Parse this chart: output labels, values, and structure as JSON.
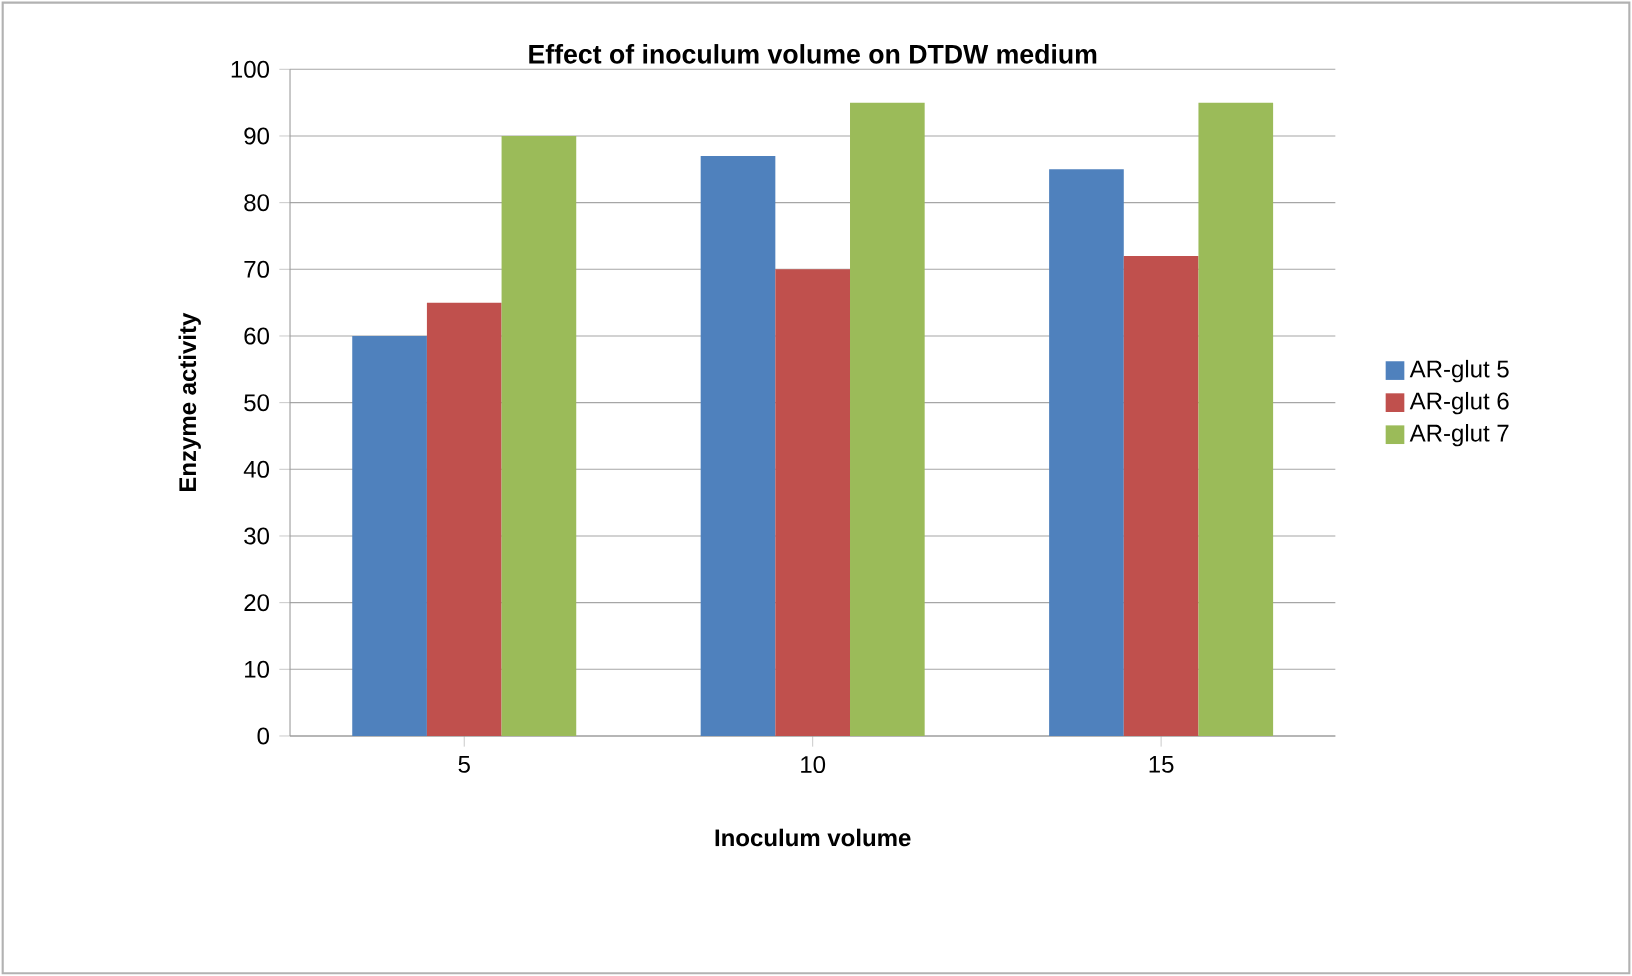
{
  "chart_data": {
    "type": "bar",
    "title": "Effect of  inoculum volume on DTDW medium",
    "xlabel": "Inoculum volume",
    "ylabel": "Enzyme activity",
    "categories": [
      "5",
      "10",
      "15"
    ],
    "series": [
      {
        "name": "AR-glut 5",
        "color": "#4f81bd",
        "values": [
          60,
          87,
          85
        ]
      },
      {
        "name": "AR-glut 6",
        "color": "#c0504d",
        "values": [
          65,
          70,
          72
        ]
      },
      {
        "name": "AR-glut 7",
        "color": "#9bbb59",
        "values": [
          90,
          95,
          95
        ]
      }
    ],
    "ylim": [
      0,
      100
    ],
    "yticks": [
      0,
      10,
      20,
      30,
      40,
      50,
      60,
      70,
      80,
      90,
      100
    ],
    "grid": "y",
    "legend": "right"
  }
}
